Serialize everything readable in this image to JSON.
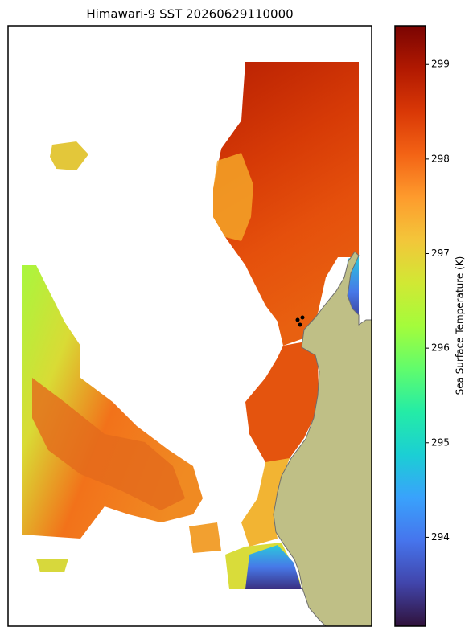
{
  "chart_data": {
    "type": "map",
    "title": "Himawari-9 SST 20260629110000",
    "ylabel": "Sea Surface Temperature (K)",
    "ylim": [
      293.06,
      299.41
    ],
    "yticks": [
      294,
      295,
      296,
      297,
      298,
      299
    ],
    "colormap": [
      "#30123b",
      "#4145ab",
      "#4675ed",
      "#39a2fc",
      "#1bcfd4",
      "#24eca6",
      "#61fc6c",
      "#a4fc3b",
      "#d1e834",
      "#f3c63a",
      "#fe9b2d",
      "#f36315",
      "#d93806",
      "#b11901",
      "#7a0402"
    ]
  }
}
